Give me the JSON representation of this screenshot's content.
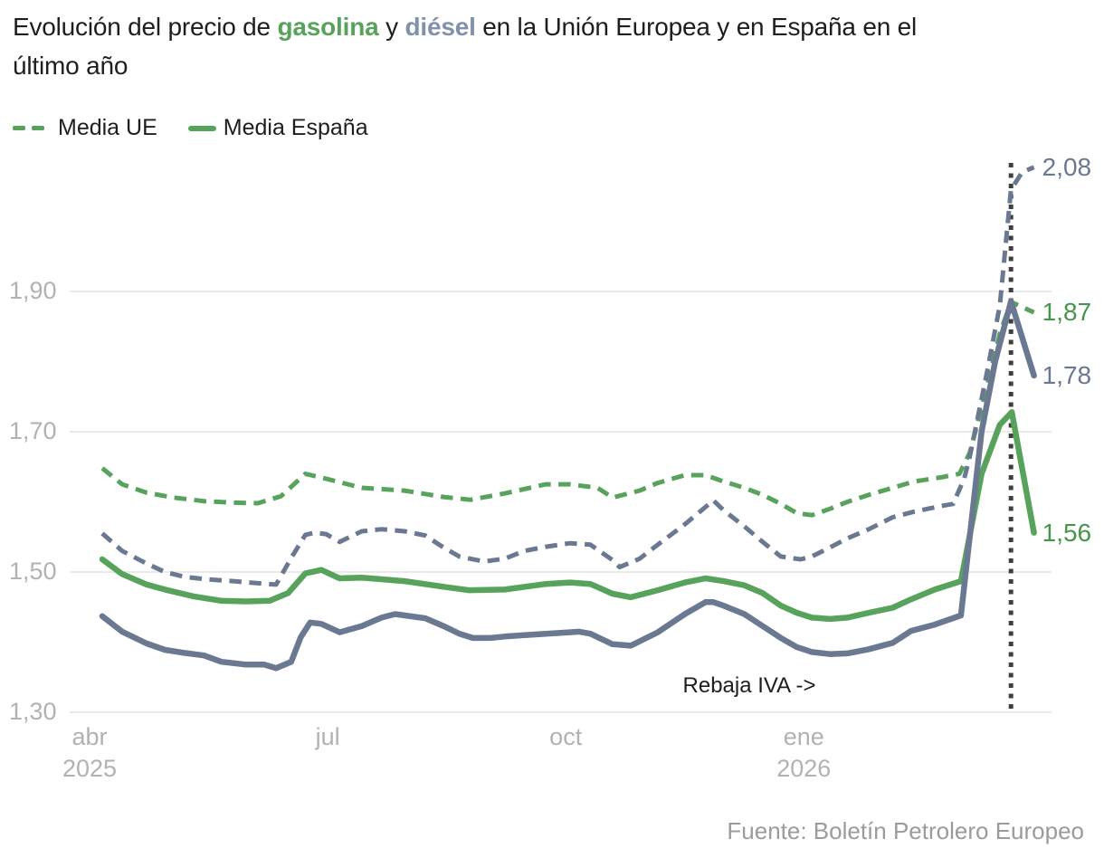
{
  "title": {
    "pre": "Evolución del precio de ",
    "gasolina": "gasolina",
    "mid": " y ",
    "diesel": "diésel",
    "post": " en la Unión Europea y en España en el",
    "line2": "último año"
  },
  "legend": {
    "ue": "Media UE",
    "espana": "Media España"
  },
  "annotation": {
    "text": "Rebaja IVA ->"
  },
  "source": "Fuente: Boletín Petrolero Europeo",
  "colors": {
    "green_line": "#58a35c",
    "green_label": "#45964b",
    "gray_line": "#6a7891",
    "gray_label": "#6a7891",
    "title_green": "#58a35c",
    "title_gray": "#8191ab",
    "grid": "#e4e4e4",
    "event_line": "#3f3f3f",
    "axis_text": "#b2b2b2",
    "text": "#1e1e1e",
    "source_text": "#9b9b9b"
  },
  "chart_data": {
    "type": "line",
    "unit": "EUR per litre",
    "title": "Evolución del precio de gasolina y diésel en la Unión Europea y en España en el último año",
    "x_axis": {
      "ticks": [
        {
          "label": "abr",
          "year": "2025",
          "m": 0
        },
        {
          "label": "jul",
          "m": 3
        },
        {
          "label": "oct",
          "m": 6
        },
        {
          "label": "ene",
          "year": "2026",
          "m": 9
        }
      ],
      "range_months": [
        0,
        12.2
      ]
    },
    "y_axis": {
      "tick_labels": [
        "1,90",
        "1,70",
        "1,50",
        "1,30"
      ],
      "tick_values": [
        1.9,
        1.7,
        1.5,
        1.3
      ],
      "range": [
        1.3,
        2.1
      ],
      "grid": true
    },
    "event_line": {
      "m": 11.61,
      "label": "Rebaja IVA ->"
    },
    "legend_position": "top-left",
    "series": [
      {
        "name": "Media UE gasolina",
        "palette": "green",
        "dashed": true,
        "end_label": "1,87",
        "points": [
          [
            0.16,
            1.648
          ],
          [
            0.41,
            1.625
          ],
          [
            0.72,
            1.613
          ],
          [
            1.06,
            1.606
          ],
          [
            1.44,
            1.601
          ],
          [
            1.78,
            1.599
          ],
          [
            2.12,
            1.598
          ],
          [
            2.41,
            1.608
          ],
          [
            2.72,
            1.64
          ],
          [
            2.98,
            1.633
          ],
          [
            3.43,
            1.62
          ],
          [
            3.97,
            1.616
          ],
          [
            4.46,
            1.607
          ],
          [
            4.8,
            1.603
          ],
          [
            5.23,
            1.612
          ],
          [
            5.75,
            1.625
          ],
          [
            6.05,
            1.625
          ],
          [
            6.4,
            1.62
          ],
          [
            6.59,
            1.606
          ],
          [
            6.93,
            1.616
          ],
          [
            7.16,
            1.627
          ],
          [
            7.5,
            1.638
          ],
          [
            7.76,
            1.638
          ],
          [
            7.99,
            1.629
          ],
          [
            8.25,
            1.62
          ],
          [
            8.48,
            1.61
          ],
          [
            8.71,
            1.597
          ],
          [
            8.91,
            1.584
          ],
          [
            9.1,
            1.581
          ],
          [
            9.33,
            1.59
          ],
          [
            9.55,
            1.6
          ],
          [
            9.82,
            1.61
          ],
          [
            10.12,
            1.62
          ],
          [
            10.39,
            1.629
          ],
          [
            10.73,
            1.635
          ],
          [
            10.96,
            1.64
          ],
          [
            11.09,
            1.67
          ],
          [
            11.3,
            1.76
          ],
          [
            11.47,
            1.84
          ],
          [
            11.61,
            1.885
          ],
          [
            11.9,
            1.87
          ]
        ]
      },
      {
        "name": "Media UE diésel",
        "palette": "gray",
        "dashed": true,
        "end_label": "2,08",
        "points": [
          [
            0.16,
            1.555
          ],
          [
            0.41,
            1.53
          ],
          [
            0.72,
            1.512
          ],
          [
            0.95,
            1.5
          ],
          [
            1.2,
            1.493
          ],
          [
            1.44,
            1.49
          ],
          [
            1.81,
            1.487
          ],
          [
            2.12,
            1.484
          ],
          [
            2.35,
            1.482
          ],
          [
            2.54,
            1.52
          ],
          [
            2.72,
            1.553
          ],
          [
            2.84,
            1.556
          ],
          [
            2.98,
            1.554
          ],
          [
            3.15,
            1.543
          ],
          [
            3.43,
            1.558
          ],
          [
            3.68,
            1.561
          ],
          [
            3.97,
            1.558
          ],
          [
            4.23,
            1.552
          ],
          [
            4.46,
            1.535
          ],
          [
            4.66,
            1.522
          ],
          [
            4.97,
            1.515
          ],
          [
            5.23,
            1.519
          ],
          [
            5.48,
            1.53
          ],
          [
            5.75,
            1.536
          ],
          [
            6.05,
            1.541
          ],
          [
            6.31,
            1.539
          ],
          [
            6.59,
            1.517
          ],
          [
            6.68,
            1.507
          ],
          [
            6.93,
            1.519
          ],
          [
            7.16,
            1.539
          ],
          [
            7.5,
            1.568
          ],
          [
            7.86,
            1.602
          ],
          [
            7.99,
            1.588
          ],
          [
            8.25,
            1.565
          ],
          [
            8.48,
            1.543
          ],
          [
            8.71,
            1.522
          ],
          [
            8.96,
            1.518
          ],
          [
            9.1,
            1.522
          ],
          [
            9.33,
            1.535
          ],
          [
            9.55,
            1.548
          ],
          [
            9.82,
            1.561
          ],
          [
            10.12,
            1.578
          ],
          [
            10.39,
            1.586
          ],
          [
            10.73,
            1.594
          ],
          [
            10.88,
            1.597
          ],
          [
            11.02,
            1.633
          ],
          [
            11.09,
            1.664
          ],
          [
            11.3,
            1.78
          ],
          [
            11.47,
            1.88
          ],
          [
            11.61,
            2.045
          ],
          [
            11.75,
            2.07
          ],
          [
            11.9,
            2.077
          ]
        ]
      },
      {
        "name": "Media España gasolina",
        "palette": "green",
        "dashed": false,
        "end_label": "1,56",
        "points": [
          [
            0.16,
            1.518
          ],
          [
            0.41,
            1.497
          ],
          [
            0.72,
            1.482
          ],
          [
            0.95,
            1.475
          ],
          [
            1.32,
            1.465
          ],
          [
            1.66,
            1.459
          ],
          [
            1.97,
            1.458
          ],
          [
            2.27,
            1.459
          ],
          [
            2.5,
            1.47
          ],
          [
            2.72,
            1.498
          ],
          [
            2.92,
            1.503
          ],
          [
            3.15,
            1.491
          ],
          [
            3.43,
            1.492
          ],
          [
            3.97,
            1.487
          ],
          [
            4.46,
            1.479
          ],
          [
            4.78,
            1.474
          ],
          [
            5.23,
            1.475
          ],
          [
            5.75,
            1.483
          ],
          [
            6.05,
            1.485
          ],
          [
            6.31,
            1.483
          ],
          [
            6.59,
            1.469
          ],
          [
            6.82,
            1.464
          ],
          [
            7.16,
            1.474
          ],
          [
            7.5,
            1.485
          ],
          [
            7.76,
            1.491
          ],
          [
            7.99,
            1.487
          ],
          [
            8.25,
            1.481
          ],
          [
            8.48,
            1.47
          ],
          [
            8.71,
            1.452
          ],
          [
            8.91,
            1.442
          ],
          [
            9.1,
            1.435
          ],
          [
            9.33,
            1.433
          ],
          [
            9.55,
            1.435
          ],
          [
            9.82,
            1.442
          ],
          [
            10.12,
            1.449
          ],
          [
            10.35,
            1.461
          ],
          [
            10.65,
            1.475
          ],
          [
            10.98,
            1.487
          ],
          [
            11.24,
            1.64
          ],
          [
            11.47,
            1.71
          ],
          [
            11.62,
            1.728
          ],
          [
            11.9,
            1.556
          ]
        ]
      },
      {
        "name": "Media España diésel",
        "palette": "gray",
        "dashed": false,
        "end_label": "1,78",
        "points": [
          [
            0.16,
            1.437
          ],
          [
            0.41,
            1.415
          ],
          [
            0.72,
            1.398
          ],
          [
            0.95,
            1.389
          ],
          [
            1.17,
            1.385
          ],
          [
            1.44,
            1.381
          ],
          [
            1.66,
            1.372
          ],
          [
            1.97,
            1.368
          ],
          [
            2.2,
            1.368
          ],
          [
            2.35,
            1.363
          ],
          [
            2.54,
            1.372
          ],
          [
            2.66,
            1.407
          ],
          [
            2.78,
            1.428
          ],
          [
            2.92,
            1.426
          ],
          [
            3.15,
            1.414
          ],
          [
            3.43,
            1.423
          ],
          [
            3.68,
            1.435
          ],
          [
            3.85,
            1.44
          ],
          [
            4.23,
            1.434
          ],
          [
            4.46,
            1.423
          ],
          [
            4.66,
            1.412
          ],
          [
            4.83,
            1.406
          ],
          [
            5.05,
            1.406
          ],
          [
            5.23,
            1.408
          ],
          [
            5.48,
            1.41
          ],
          [
            5.75,
            1.412
          ],
          [
            6.05,
            1.414
          ],
          [
            6.17,
            1.415
          ],
          [
            6.31,
            1.412
          ],
          [
            6.59,
            1.397
          ],
          [
            6.82,
            1.395
          ],
          [
            7.16,
            1.414
          ],
          [
            7.5,
            1.44
          ],
          [
            7.76,
            1.457
          ],
          [
            7.86,
            1.457
          ],
          [
            7.99,
            1.452
          ],
          [
            8.25,
            1.44
          ],
          [
            8.48,
            1.423
          ],
          [
            8.71,
            1.406
          ],
          [
            8.91,
            1.393
          ],
          [
            9.1,
            1.386
          ],
          [
            9.33,
            1.383
          ],
          [
            9.55,
            1.384
          ],
          [
            9.82,
            1.39
          ],
          [
            10.12,
            1.399
          ],
          [
            10.35,
            1.416
          ],
          [
            10.65,
            1.425
          ],
          [
            10.98,
            1.438
          ],
          [
            11.13,
            1.59
          ],
          [
            11.24,
            1.7
          ],
          [
            11.41,
            1.8
          ],
          [
            11.61,
            1.886
          ],
          [
            11.9,
            1.78
          ]
        ]
      }
    ]
  }
}
